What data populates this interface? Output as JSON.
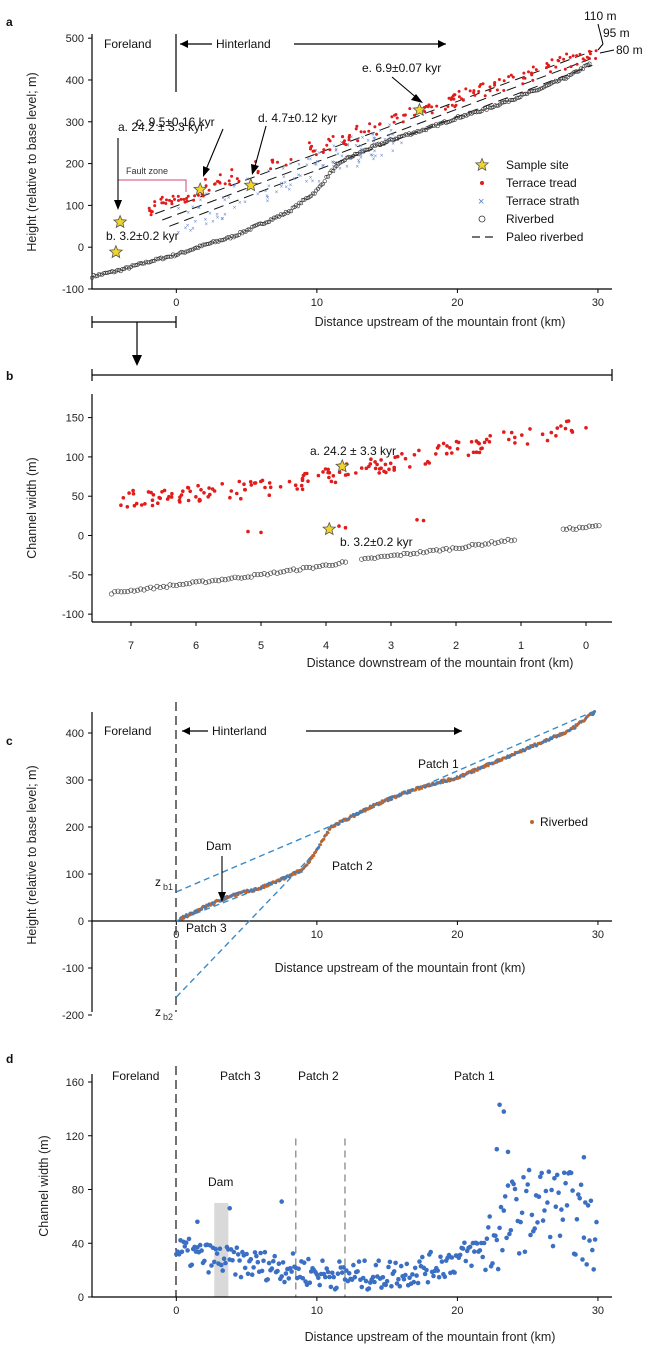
{
  "chart_data": [
    {
      "panel": "a",
      "type": "scatter",
      "xlabel": "Distance upstream of the mountain front (km)",
      "ylabel": "Height (relative to base level; m)",
      "xlim": [
        -6,
        31
      ],
      "ylim": [
        -100,
        510
      ],
      "xticks": [
        0,
        10,
        20,
        30
      ],
      "yticks": [
        -100,
        0,
        100,
        200,
        300,
        400,
        500
      ],
      "region_labels": {
        "foreland": "Foreland",
        "hinterland": "Hinterland"
      },
      "fault_zone_label": "Fault zone",
      "legend": {
        "sample": "Sample site",
        "tread": "Terrace tread",
        "strath": "Terrace strath",
        "riverbed": "Riverbed",
        "paleo": "Paleo riverbed"
      },
      "paleo_labels": [
        "110 m",
        "95 m",
        "80 m"
      ],
      "paleo_offsets": [
        80,
        95,
        110
      ],
      "riverbed": [
        [
          -6,
          -70
        ],
        [
          -4,
          -55
        ],
        [
          -2,
          -35
        ],
        [
          0,
          -18
        ],
        [
          2,
          5
        ],
        [
          4,
          25
        ],
        [
          6,
          55
        ],
        [
          8,
          85
        ],
        [
          10,
          135
        ],
        [
          11,
          180
        ],
        [
          12,
          210
        ],
        [
          14,
          240
        ],
        [
          16,
          265
        ],
        [
          18,
          285
        ],
        [
          20,
          310
        ],
        [
          22,
          330
        ],
        [
          24,
          355
        ],
        [
          26,
          380
        ],
        [
          28,
          410
        ],
        [
          29.5,
          440
        ]
      ],
      "tread": [
        [
          -2,
          100
        ],
        [
          30,
          470
        ]
      ],
      "strath": [
        [
          0,
          70
        ],
        [
          16,
          280
        ]
      ],
      "samples": [
        {
          "label": "a. 24.2 ± 3.3 kyr",
          "x": -4.0,
          "y": 60
        },
        {
          "label": "b. 3.2±0.2 kyr",
          "x": -4.3,
          "y": -12
        },
        {
          "label": "c. 9.5±0.16 kyr",
          "x": 1.7,
          "y": 138
        },
        {
          "label": "d. 4.7±0.12 kyr",
          "x": 5.3,
          "y": 148
        },
        {
          "label": "e. 6.9±0.07 kyr",
          "x": 17.3,
          "y": 328
        }
      ]
    },
    {
      "panel": "b",
      "type": "scatter",
      "xlabel": "Distance downstream of the mountain front (km)",
      "ylabel": "Channel width (m)",
      "xlim": [
        7.6,
        -0.4
      ],
      "ylim": [
        -110,
        180
      ],
      "xticks": [
        7,
        6,
        5,
        4,
        3,
        2,
        1,
        0
      ],
      "yticks": [
        -100,
        -50,
        0,
        50,
        100,
        150
      ],
      "riverbed": [
        [
          7.3,
          -73
        ],
        [
          6.0,
          -60
        ],
        [
          5.0,
          -50
        ],
        [
          4.0,
          -38
        ],
        [
          3.2,
          -28
        ],
        [
          2.0,
          -16
        ],
        [
          1.1,
          -5
        ],
        [
          0.3,
          8
        ],
        [
          -0.2,
          12
        ]
      ],
      "tread": [
        [
          7.2,
          45
        ],
        [
          5.0,
          60
        ],
        [
          4.0,
          75
        ],
        [
          3.0,
          92
        ],
        [
          2.0,
          110
        ],
        [
          1.0,
          125
        ],
        [
          0.3,
          135
        ]
      ],
      "samples": [
        {
          "label": "a. 24.2 ± 3.3 kyr",
          "x": 3.75,
          "y": 88
        },
        {
          "label": "b. 3.2±0.2 kyr",
          "x": 3.95,
          "y": 8
        }
      ]
    },
    {
      "panel": "c",
      "type": "scatter",
      "xlabel": "Distance upstream of the mountain front (km)",
      "ylabel": "Height (relative to base level; m)",
      "xlim": [
        -6,
        31
      ],
      "ylim": [
        -200,
        460
      ],
      "xticks": [
        0,
        10,
        20,
        30
      ],
      "yticks": [
        -200,
        -100,
        0,
        100,
        200,
        300,
        400
      ],
      "region_labels": {
        "foreland": "Foreland",
        "hinterland": "Hinterland"
      },
      "legend": {
        "riverbed": "Riverbed"
      },
      "patch_labels": {
        "p1": "Patch 1",
        "p2": "Patch 2",
        "p3": "Patch 3",
        "dam": "Dam"
      },
      "zb_labels": {
        "zb1": "z",
        "zb1_sub": "b1",
        "zb2": "z",
        "zb2_sub": "b2"
      },
      "zb1": 62,
      "zb2": -162,
      "riverbed": [
        [
          0,
          0
        ],
        [
          2,
          30
        ],
        [
          4,
          55
        ],
        [
          6,
          70
        ],
        [
          8,
          95
        ],
        [
          9,
          110
        ],
        [
          10,
          150
        ],
        [
          11,
          200
        ],
        [
          12,
          215
        ],
        [
          14,
          245
        ],
        [
          16,
          270
        ],
        [
          18,
          290
        ],
        [
          20,
          305
        ],
        [
          22,
          330
        ],
        [
          24,
          355
        ],
        [
          26,
          380
        ],
        [
          28,
          405
        ],
        [
          30,
          450
        ]
      ],
      "fit_lines": [
        [
          [
            0,
            62
          ],
          [
            12,
            215
          ],
          [
            30,
            450
          ]
        ],
        [
          [
            0,
            -162
          ],
          [
            10,
            150
          ]
        ],
        [
          [
            0,
            0
          ],
          [
            9,
            105
          ]
        ]
      ]
    },
    {
      "panel": "d",
      "type": "scatter",
      "xlabel": "Distance upstream of the mountain front (km)",
      "ylabel": "Channel width (m)",
      "xlim": [
        -6,
        31
      ],
      "ylim": [
        0,
        160
      ],
      "xticks": [
        0,
        10,
        20,
        30
      ],
      "yticks": [
        0,
        40,
        80,
        120,
        160
      ],
      "region_labels": {
        "foreland": "Foreland"
      },
      "patch_labels": {
        "p1": "Patch 1",
        "p2": "Patch 2",
        "p3": "Patch 3",
        "dam": "Dam"
      },
      "patch_boundaries": [
        8.5,
        12
      ],
      "dam_range": [
        2.7,
        3.7
      ],
      "dam_height": 70
    }
  ],
  "panel_letters": [
    "a",
    "b",
    "c",
    "d"
  ],
  "colors": {
    "tread": "#e21b1b",
    "strath": "#5b7fc7",
    "width": "#3b6fc4",
    "fit": "#3a8bc8",
    "star": "#f0d42a"
  }
}
